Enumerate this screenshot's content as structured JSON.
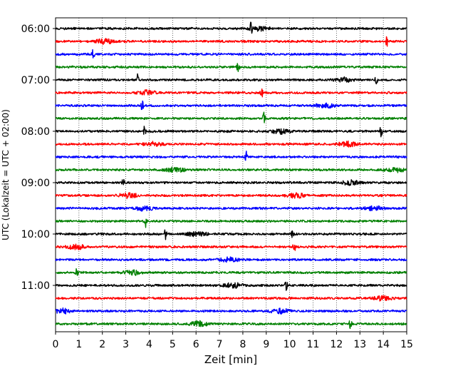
{
  "chart_data": {
    "type": "line",
    "title": "",
    "xlabel": "Zeit  [min]",
    "ylabel": "UTC (Lokalzeit = UTC + 02:00)",
    "xlim": [
      0,
      15
    ],
    "x_ticks": [
      "0",
      "1",
      "2",
      "3",
      "4",
      "5",
      "6",
      "7",
      "8",
      "9",
      "10",
      "11",
      "12",
      "13",
      "14",
      "15"
    ],
    "y_tick_labels": [
      "06:00",
      "07:00",
      "08:00",
      "09:00",
      "10:00",
      "11:00"
    ],
    "grid": "vertical dotted lines at each minute",
    "trace_interval_min": 15,
    "first_trace_utc": "06:00",
    "trace_colors": [
      "#000000",
      "#ff0000",
      "#0000ff",
      "#008000"
    ],
    "series": [
      {
        "start_utc": "06:00",
        "color": "#000000",
        "events_min": [
          8.35
        ],
        "bursts_min": [
          8.7
        ]
      },
      {
        "start_utc": "06:15",
        "color": "#ff0000",
        "events_min": [
          14.15
        ],
        "bursts_min": [
          2.1
        ]
      },
      {
        "start_utc": "06:30",
        "color": "#0000ff",
        "events_min": [
          1.6
        ],
        "bursts_min": []
      },
      {
        "start_utc": "06:45",
        "color": "#008000",
        "events_min": [
          7.8
        ],
        "bursts_min": []
      },
      {
        "start_utc": "07:00",
        "color": "#000000",
        "events_min": [
          3.5,
          13.7
        ],
        "bursts_min": [
          12.3
        ]
      },
      {
        "start_utc": "07:15",
        "color": "#ff0000",
        "events_min": [
          8.8
        ],
        "bursts_min": [
          3.9
        ]
      },
      {
        "start_utc": "07:30",
        "color": "#0000ff",
        "events_min": [
          3.7
        ],
        "bursts_min": [
          11.5
        ]
      },
      {
        "start_utc": "07:45",
        "color": "#008000",
        "events_min": [
          8.9
        ],
        "bursts_min": []
      },
      {
        "start_utc": "08:00",
        "color": "#000000",
        "events_min": [
          3.8,
          13.9
        ],
        "bursts_min": [
          9.6
        ]
      },
      {
        "start_utc": "08:15",
        "color": "#ff0000",
        "events_min": [],
        "bursts_min": [
          4.2,
          12.5
        ]
      },
      {
        "start_utc": "08:30",
        "color": "#0000ff",
        "events_min": [
          8.15
        ],
        "bursts_min": []
      },
      {
        "start_utc": "08:45",
        "color": "#008000",
        "events_min": [],
        "bursts_min": [
          5.1,
          14.5
        ]
      },
      {
        "start_utc": "09:00",
        "color": "#000000",
        "events_min": [
          2.9
        ],
        "bursts_min": [
          12.6
        ]
      },
      {
        "start_utc": "09:15",
        "color": "#ff0000",
        "events_min": [],
        "bursts_min": [
          3.1,
          10.3
        ]
      },
      {
        "start_utc": "09:30",
        "color": "#0000ff",
        "events_min": [],
        "bursts_min": [
          3.8,
          13.6
        ]
      },
      {
        "start_utc": "09:45",
        "color": "#008000",
        "events_min": [
          3.85
        ],
        "bursts_min": []
      },
      {
        "start_utc": "10:00",
        "color": "#000000",
        "events_min": [
          4.7,
          10.1
        ],
        "bursts_min": [
          6.0
        ]
      },
      {
        "start_utc": "10:15",
        "color": "#ff0000",
        "events_min": [
          10.2
        ],
        "bursts_min": [
          0.9
        ]
      },
      {
        "start_utc": "10:30",
        "color": "#0000ff",
        "events_min": [],
        "bursts_min": [
          7.4
        ]
      },
      {
        "start_utc": "10:45",
        "color": "#008000",
        "events_min": [
          0.9
        ],
        "bursts_min": [
          3.3
        ]
      },
      {
        "start_utc": "11:00",
        "color": "#000000",
        "events_min": [
          9.85
        ],
        "bursts_min": [
          7.6
        ]
      },
      {
        "start_utc": "11:15",
        "color": "#ff0000",
        "events_min": [],
        "bursts_min": [
          14.0
        ]
      },
      {
        "start_utc": "11:30",
        "color": "#0000ff",
        "events_min": [],
        "bursts_min": [
          0.3,
          9.6
        ]
      },
      {
        "start_utc": "11:45",
        "color": "#008000",
        "events_min": [
          12.6
        ],
        "bursts_min": [
          6.1
        ]
      }
    ]
  }
}
